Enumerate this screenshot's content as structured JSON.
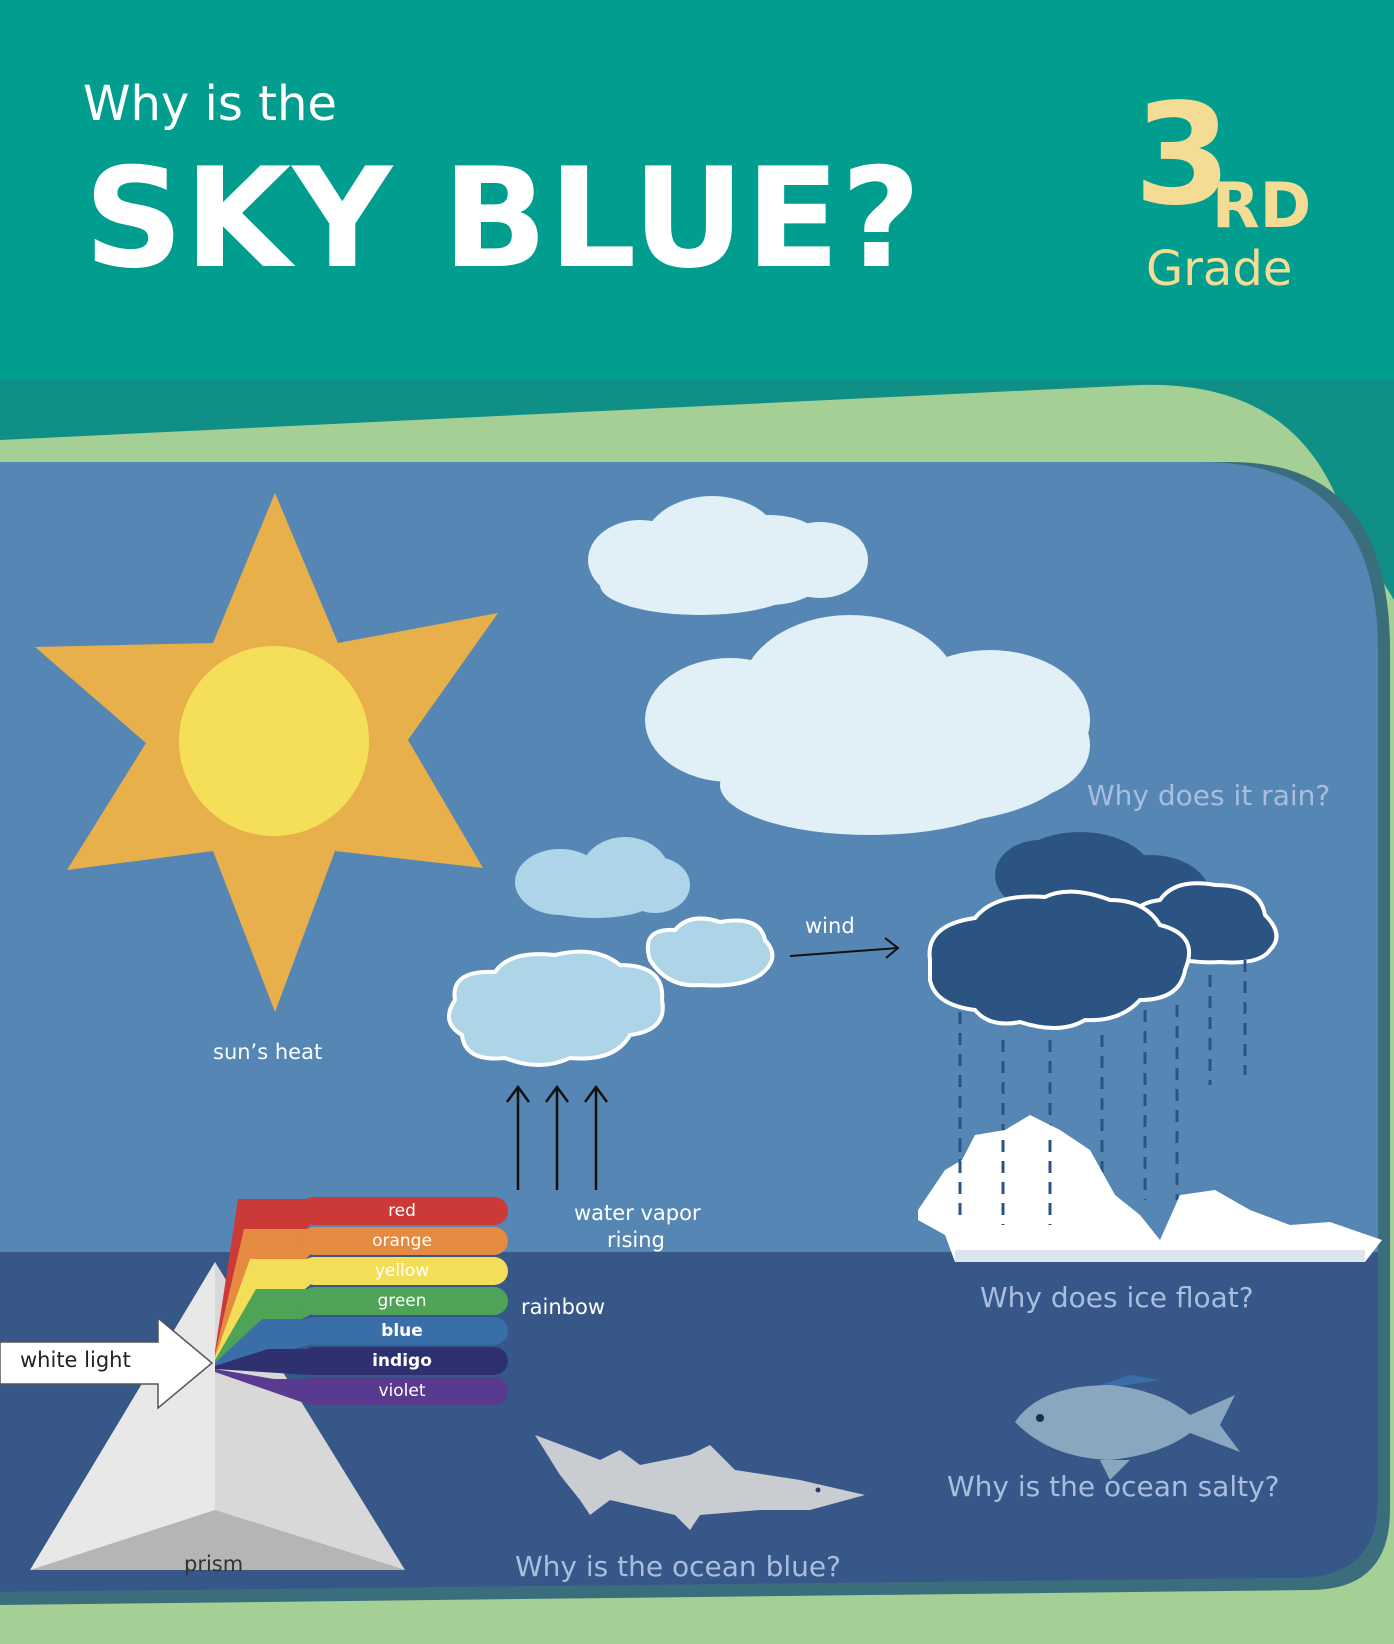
{
  "header": {
    "title_small": "Why is the",
    "title_big": "SKY BLUE?",
    "grade_number": "3",
    "grade_suffix": "RD",
    "grade_word": "Grade"
  },
  "labels": {
    "sun": "sun’s heat",
    "wind": "wind",
    "vapor_line1": "water vapor",
    "vapor_line2": "rising",
    "rainbow": "rainbow",
    "white_light": "white light",
    "prism": "prism"
  },
  "questions": {
    "rain": "Why does it rain?",
    "ice": "Why does ice float?",
    "ocean_blue": "Why is the ocean blue?",
    "ocean_salty": "Why is the ocean salty?"
  },
  "spectrum": [
    {
      "label": "red",
      "color": "#cc3a38"
    },
    {
      "label": "orange",
      "color": "#e48b41"
    },
    {
      "label": "yellow",
      "color": "#f4de57"
    },
    {
      "label": "green",
      "color": "#4ea356"
    },
    {
      "label": "blue",
      "color": "#3a6ea8"
    },
    {
      "label": "indigo",
      "color": "#2e3070"
    },
    {
      "label": "violet",
      "color": "#583a8e"
    }
  ],
  "colors": {
    "header_teal": "#019e90",
    "green_border": "#a5d095",
    "sky": "#5586b4",
    "sea": "#365787",
    "sun_rays": "#e8b04a",
    "sun_core": "#f6df58",
    "grade_cream": "#f4dc95",
    "question_text": "#a9bedf"
  }
}
